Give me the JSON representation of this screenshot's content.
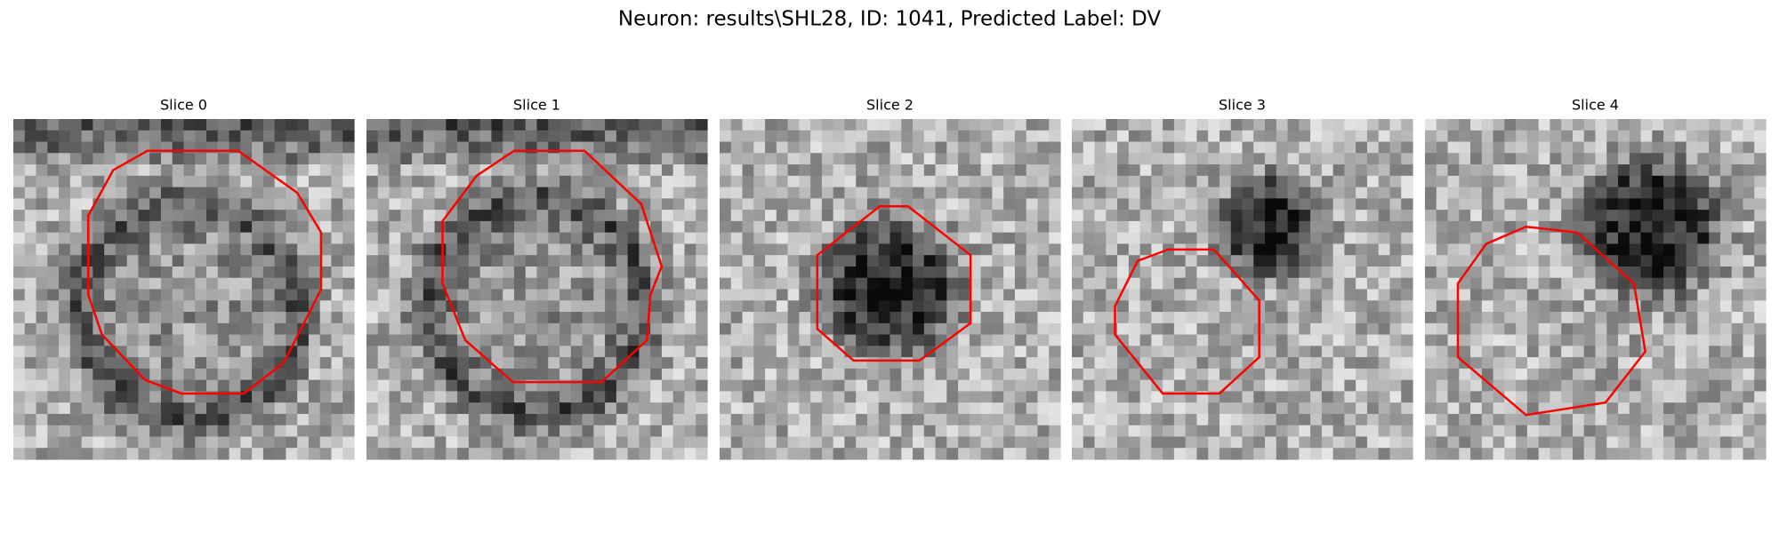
{
  "title": "Neuron: results\\SHL28, ID: 1041, Predicted Label: DV",
  "panels": [
    {
      "title": "Slice 0"
    },
    {
      "title": "Slice 1"
    },
    {
      "title": "Slice 2"
    },
    {
      "title": "Slice 3"
    },
    {
      "title": "Slice 4"
    }
  ]
}
